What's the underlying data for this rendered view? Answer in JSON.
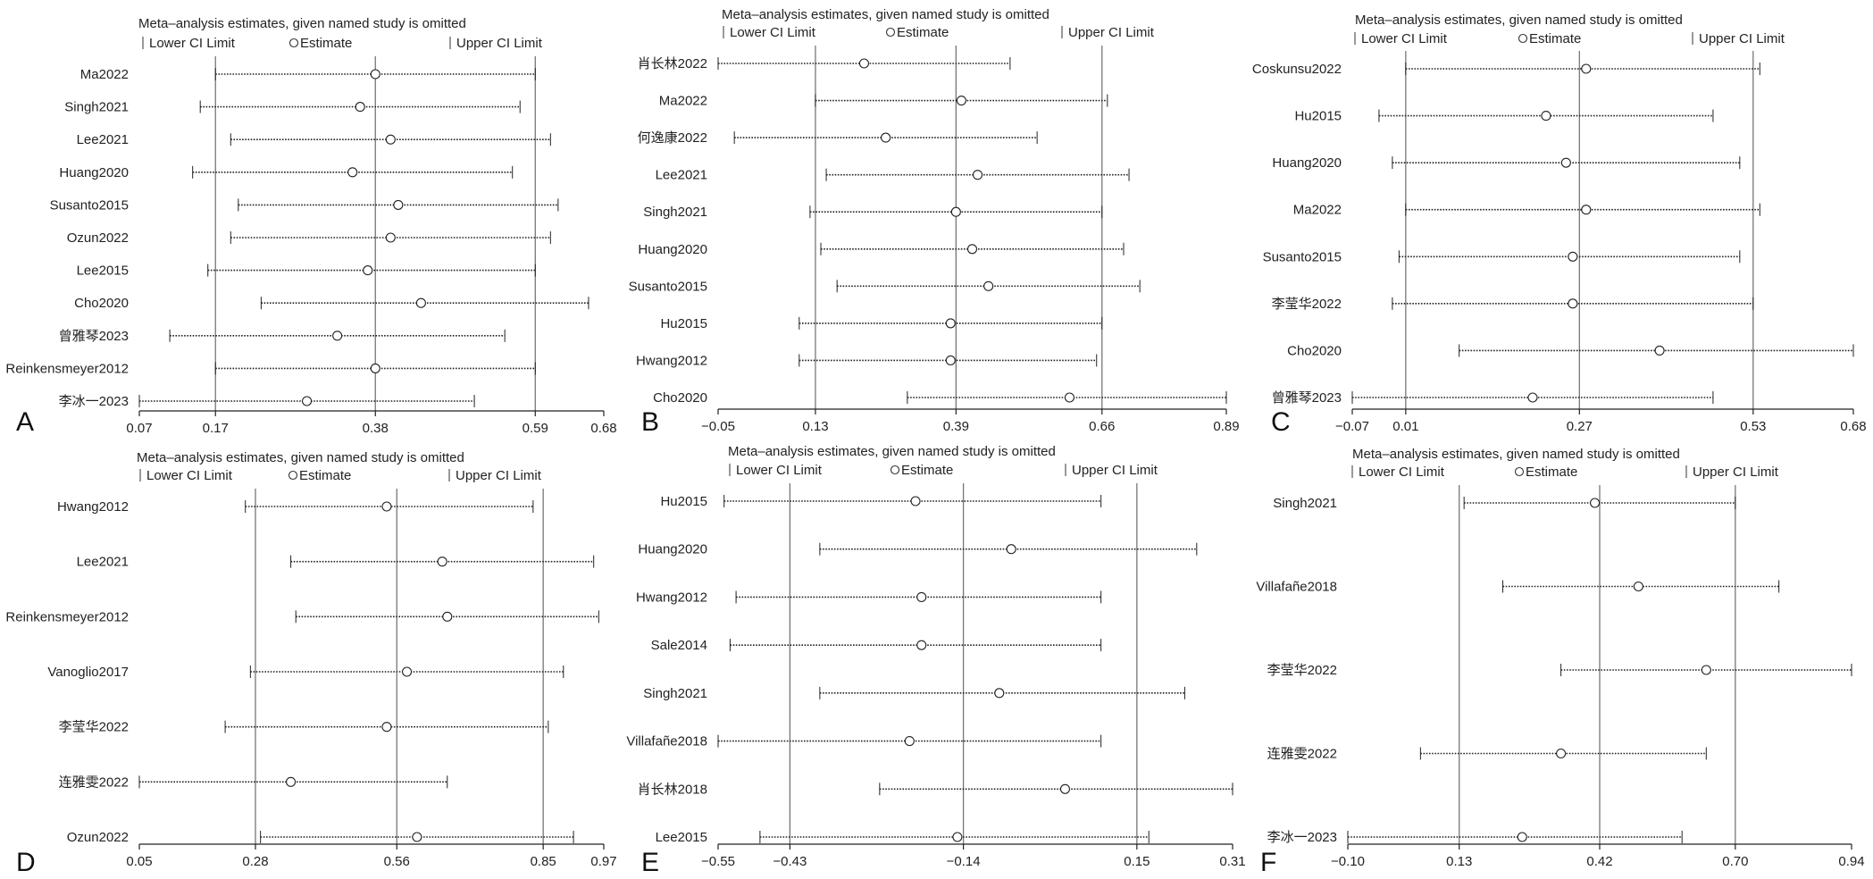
{
  "chart_data": [
    {
      "type": "forest",
      "panel_letter": "A",
      "title": "Meta–analysis estimates, given named study is omitted",
      "legend": [
        "Lower CI Limit",
        "Estimate",
        "Upper CI Limit"
      ],
      "xlim": [
        0.07,
        0.68
      ],
      "xticks": [
        0.07,
        0.17,
        0.38,
        0.59,
        0.68
      ],
      "xtick_labels": [
        "0.07",
        "0.17",
        "0.38",
        "0.59",
        "0.68"
      ],
      "reference_lines": [
        0.17,
        0.38,
        0.59
      ],
      "studies": [
        {
          "name": "Ma2022",
          "lower": 0.17,
          "estimate": 0.38,
          "upper": 0.59
        },
        {
          "name": "Singh2021",
          "lower": 0.15,
          "estimate": 0.36,
          "upper": 0.57
        },
        {
          "name": "Lee2021",
          "lower": 0.19,
          "estimate": 0.4,
          "upper": 0.61
        },
        {
          "name": "Huang2020",
          "lower": 0.14,
          "estimate": 0.35,
          "upper": 0.56
        },
        {
          "name": "Susanto2015",
          "lower": 0.2,
          "estimate": 0.41,
          "upper": 0.62
        },
        {
          "name": "Ozun2022",
          "lower": 0.19,
          "estimate": 0.4,
          "upper": 0.61
        },
        {
          "name": "Lee2015",
          "lower": 0.16,
          "estimate": 0.37,
          "upper": 0.59
        },
        {
          "name": "Cho2020",
          "lower": 0.23,
          "estimate": 0.44,
          "upper": 0.66
        },
        {
          "name": "曾雅琴2023",
          "lower": 0.11,
          "estimate": 0.33,
          "upper": 0.55
        },
        {
          "name": "Reinkensmeyer2012",
          "lower": 0.17,
          "estimate": 0.38,
          "upper": 0.59
        },
        {
          "name": "李冰一2023",
          "lower": 0.07,
          "estimate": 0.29,
          "upper": 0.51
        }
      ]
    },
    {
      "type": "forest",
      "panel_letter": "B",
      "title": "Meta–analysis estimates, given named study is omitted",
      "legend": [
        "Lower CI Limit",
        "Estimate",
        "Upper CI Limit"
      ],
      "xlim": [
        -0.05,
        0.89
      ],
      "xticks": [
        -0.05,
        0.13,
        0.39,
        0.66,
        0.89
      ],
      "xtick_labels": [
        "−0.05",
        "0.13",
        "0.39",
        "0.66",
        "0.89"
      ],
      "reference_lines": [
        0.13,
        0.39,
        0.66
      ],
      "studies": [
        {
          "name": "肖长林2022",
          "lower": -0.05,
          "estimate": 0.22,
          "upper": 0.49
        },
        {
          "name": "Ma2022",
          "lower": 0.13,
          "estimate": 0.4,
          "upper": 0.67
        },
        {
          "name": "何逸康2022",
          "lower": -0.02,
          "estimate": 0.26,
          "upper": 0.54
        },
        {
          "name": "Lee2021",
          "lower": 0.15,
          "estimate": 0.43,
          "upper": 0.71
        },
        {
          "name": "Singh2021",
          "lower": 0.12,
          "estimate": 0.39,
          "upper": 0.66
        },
        {
          "name": "Huang2020",
          "lower": 0.14,
          "estimate": 0.42,
          "upper": 0.7
        },
        {
          "name": "Susanto2015",
          "lower": 0.17,
          "estimate": 0.45,
          "upper": 0.73
        },
        {
          "name": "Hu2015",
          "lower": 0.1,
          "estimate": 0.38,
          "upper": 0.66
        },
        {
          "name": "Hwang2012",
          "lower": 0.1,
          "estimate": 0.38,
          "upper": 0.65
        },
        {
          "name": "Cho2020",
          "lower": 0.3,
          "estimate": 0.6,
          "upper": 0.89
        }
      ]
    },
    {
      "type": "forest",
      "panel_letter": "C",
      "title": "Meta–analysis estimates, given named study is omitted",
      "legend": [
        "Lower CI Limit",
        "Estimate",
        "Upper CI Limit"
      ],
      "xlim": [
        -0.07,
        0.68
      ],
      "xticks": [
        -0.07,
        0.01,
        0.27,
        0.53,
        0.68
      ],
      "xtick_labels": [
        "−0.07",
        "0.01",
        "0.27",
        "0.53",
        "0.68"
      ],
      "reference_lines": [
        0.01,
        0.27,
        0.53
      ],
      "studies": [
        {
          "name": "Coskunsu2022",
          "lower": 0.01,
          "estimate": 0.28,
          "upper": 0.54
        },
        {
          "name": "Hu2015",
          "lower": -0.03,
          "estimate": 0.22,
          "upper": 0.47
        },
        {
          "name": "Huang2020",
          "lower": -0.01,
          "estimate": 0.25,
          "upper": 0.51
        },
        {
          "name": "Ma2022",
          "lower": 0.01,
          "estimate": 0.28,
          "upper": 0.54
        },
        {
          "name": "Susanto2015",
          "lower": 0.0,
          "estimate": 0.26,
          "upper": 0.51
        },
        {
          "name": "李莹华2022",
          "lower": -0.01,
          "estimate": 0.26,
          "upper": 0.53
        },
        {
          "name": "Cho2020",
          "lower": 0.09,
          "estimate": 0.39,
          "upper": 0.68
        },
        {
          "name": "曾雅琴2023",
          "lower": -0.07,
          "estimate": 0.2,
          "upper": 0.47
        }
      ]
    },
    {
      "type": "forest",
      "panel_letter": "D",
      "title": "Meta–analysis estimates, given named study is omitted",
      "legend": [
        "Lower CI Limit",
        "Estimate",
        "Upper CI Limit"
      ],
      "xlim": [
        0.05,
        0.97
      ],
      "xticks": [
        0.05,
        0.28,
        0.56,
        0.85,
        0.97
      ],
      "xtick_labels": [
        "0.05",
        "0.28",
        "0.56",
        "0.85",
        "0.97"
      ],
      "reference_lines": [
        0.28,
        0.56,
        0.85
      ],
      "studies": [
        {
          "name": "Hwang2012",
          "lower": 0.26,
          "estimate": 0.54,
          "upper": 0.83
        },
        {
          "name": "Lee2021",
          "lower": 0.35,
          "estimate": 0.65,
          "upper": 0.95
        },
        {
          "name": "Reinkensmeyer2012",
          "lower": 0.36,
          "estimate": 0.66,
          "upper": 0.96
        },
        {
          "name": "Vanoglio2017",
          "lower": 0.27,
          "estimate": 0.58,
          "upper": 0.89
        },
        {
          "name": "李莹华2022",
          "lower": 0.22,
          "estimate": 0.54,
          "upper": 0.86
        },
        {
          "name": "连雅雯2022",
          "lower": 0.05,
          "estimate": 0.35,
          "upper": 0.66
        },
        {
          "name": "Ozun2022",
          "lower": 0.29,
          "estimate": 0.6,
          "upper": 0.91
        }
      ]
    },
    {
      "type": "forest",
      "panel_letter": "E",
      "title": "Meta–analysis estimates, given named study is omitted",
      "legend": [
        "Lower CI Limit",
        "Estimate",
        "Upper CI Limit"
      ],
      "xlim": [
        -0.55,
        0.31
      ],
      "xticks": [
        -0.55,
        -0.43,
        -0.14,
        0.15,
        0.31
      ],
      "xtick_labels": [
        "−0.55",
        "−0.43",
        "−0.14",
        "0.15",
        "0.31"
      ],
      "reference_lines": [
        -0.43,
        -0.14,
        0.15
      ],
      "studies": [
        {
          "name": "Hu2015",
          "lower": -0.54,
          "estimate": -0.22,
          "upper": 0.09
        },
        {
          "name": "Huang2020",
          "lower": -0.38,
          "estimate": -0.06,
          "upper": 0.25
        },
        {
          "name": "Hwang2012",
          "lower": -0.52,
          "estimate": -0.21,
          "upper": 0.09
        },
        {
          "name": "Sale2014",
          "lower": -0.53,
          "estimate": -0.21,
          "upper": 0.09
        },
        {
          "name": "Singh2021",
          "lower": -0.38,
          "estimate": -0.08,
          "upper": 0.23
        },
        {
          "name": "Villafañe2018",
          "lower": -0.55,
          "estimate": -0.23,
          "upper": 0.09
        },
        {
          "name": "肖长林2018",
          "lower": -0.28,
          "estimate": 0.03,
          "upper": 0.31
        },
        {
          "name": "Lee2015",
          "lower": -0.48,
          "estimate": -0.15,
          "upper": 0.17
        }
      ]
    },
    {
      "type": "forest",
      "panel_letter": "F",
      "title": "Meta–analysis estimates, given named study is omitted",
      "legend": [
        "Lower CI Limit",
        "Estimate",
        "Upper CI Limit"
      ],
      "xlim": [
        -0.1,
        0.94
      ],
      "xticks": [
        -0.1,
        0.13,
        0.42,
        0.7,
        0.94
      ],
      "xtick_labels": [
        "−0.10",
        "0.13",
        "0.42",
        "0.70",
        "0.94"
      ],
      "reference_lines": [
        0.13,
        0.42,
        0.7
      ],
      "studies": [
        {
          "name": "Singh2021",
          "lower": 0.14,
          "estimate": 0.41,
          "upper": 0.7
        },
        {
          "name": "Villafañe2018",
          "lower": 0.22,
          "estimate": 0.5,
          "upper": 0.79
        },
        {
          "name": "李莹华2022",
          "lower": 0.34,
          "estimate": 0.64,
          "upper": 0.94
        },
        {
          "name": "连雅雯2022",
          "lower": 0.05,
          "estimate": 0.34,
          "upper": 0.64
        },
        {
          "name": "李冰一2023",
          "lower": -0.1,
          "estimate": 0.26,
          "upper": 0.59
        }
      ]
    }
  ]
}
